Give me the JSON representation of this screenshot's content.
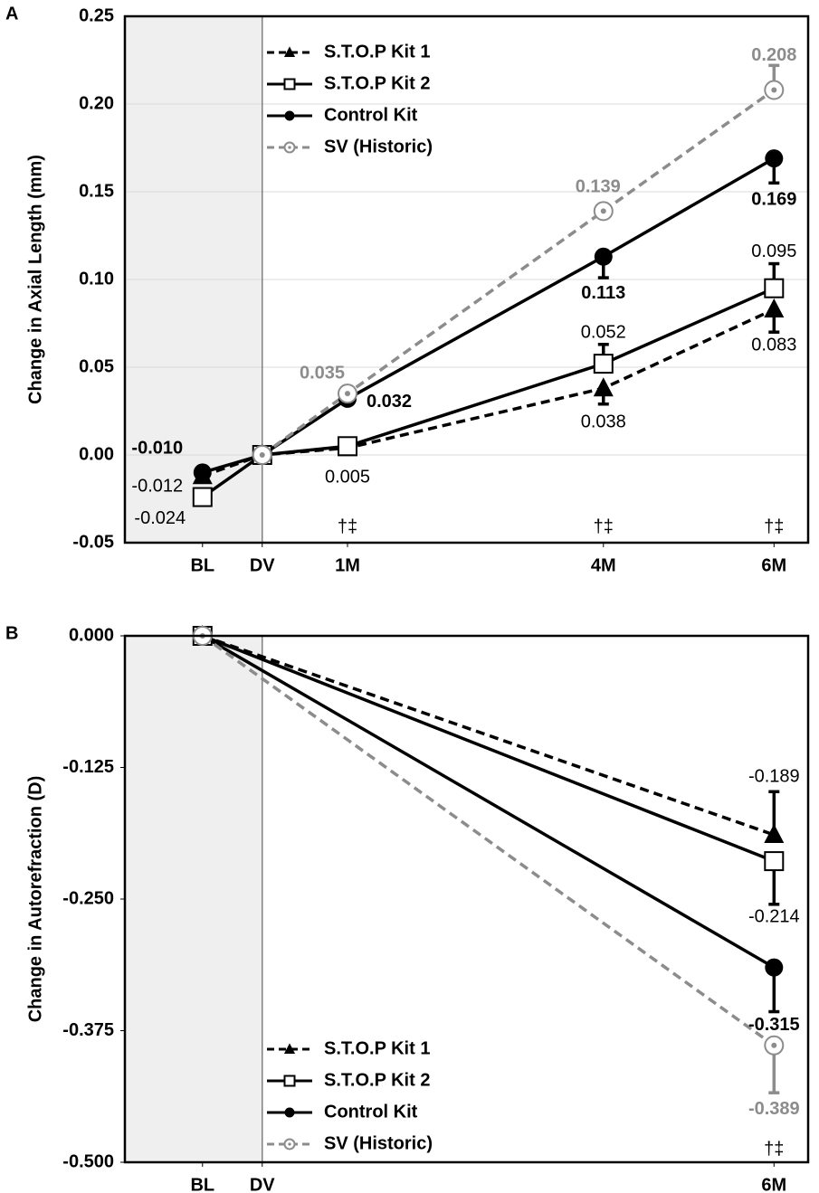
{
  "chart_data": [
    {
      "type": "line",
      "panel_label": "A",
      "ylabel": "Change in Axial Length (mm)",
      "x": [
        -0.7,
        0,
        1,
        4,
        6
      ],
      "xlim": [
        -1.61,
        6.4
      ],
      "xticks": [
        {
          "value": -0.7,
          "label": "BL"
        },
        {
          "value": 0,
          "label": "DV"
        },
        {
          "value": 1,
          "label": "1M"
        },
        {
          "value": 4,
          "label": "4M"
        },
        {
          "value": 6,
          "label": "6M"
        }
      ],
      "ylim": [
        -0.05,
        0.25
      ],
      "yticks": [
        -0.05,
        {
          "value": 0,
          "label": "0.00"
        },
        0.05,
        {
          "value": 0.1,
          "label": "0.10"
        },
        0.15,
        {
          "value": 0.2,
          "label": "0.20"
        },
        0.25
      ],
      "grid": true,
      "legend": "upper left",
      "annotations": [
        "†‡",
        "†‡",
        "†‡"
      ],
      "series": [
        {
          "name": "S.T.O.P Kit 1",
          "color": "#000000",
          "linestyle": "dashed",
          "marker": "triangle",
          "error_side": "below",
          "label_weight": "normal",
          "values": [
            -0.012,
            0,
            0.004,
            0.038,
            0.083
          ],
          "errors": [
            null,
            null,
            0.003,
            0.009,
            0.013
          ],
          "value_labels": [
            "-0.012",
            null,
            null,
            "0.038",
            "0.083"
          ]
        },
        {
          "name": "S.T.O.P Kit 2",
          "color": "#000000",
          "linestyle": "solid",
          "marker": "square",
          "error_side": "above",
          "label_weight": "normal",
          "values": [
            -0.024,
            0,
            0.005,
            0.052,
            0.095
          ],
          "errors": [
            null,
            null,
            0.003,
            0.011,
            0.014
          ],
          "value_labels": [
            "-0.024",
            null,
            "0.005",
            "0.052",
            "0.095"
          ]
        },
        {
          "name": "Control Kit",
          "color": "#000000",
          "linestyle": "solid",
          "marker": "circle",
          "error_side": "below",
          "label_weight": "bold",
          "values": [
            -0.01,
            0,
            0.032,
            0.113,
            0.169
          ],
          "errors": [
            null,
            null,
            0.003,
            0.012,
            0.014
          ],
          "value_labels": [
            "-0.010",
            null,
            "0.032",
            "0.113",
            "0.169"
          ]
        },
        {
          "name": "SV (Historic)",
          "color": "#8c8c8c",
          "linestyle": "dashed",
          "marker": "ring",
          "error_side": "above",
          "label_weight": "bold",
          "values": [
            null,
            0,
            0.035,
            0.139,
            0.208
          ],
          "errors": [
            null,
            null,
            null,
            null,
            0.014
          ],
          "value_labels": [
            null,
            null,
            "0.035",
            "0.139",
            "0.208"
          ]
        }
      ]
    },
    {
      "type": "line",
      "panel_label": "B",
      "ylabel": "Change in Autorefraction (D)",
      "x": [
        -0.7,
        6
      ],
      "xlim": [
        -1.61,
        6.4
      ],
      "xticks": [
        {
          "value": -0.7,
          "label": "BL"
        },
        {
          "value": 0,
          "label": "DV"
        },
        {
          "value": 6,
          "label": "6M"
        }
      ],
      "ylim": [
        -0.5,
        0
      ],
      "yticks": [
        {
          "value": -0.5,
          "label": "-0.500"
        },
        {
          "value": -0.375,
          "label": "-0.375"
        },
        {
          "value": -0.25,
          "label": "-0.250"
        },
        {
          "value": -0.125,
          "label": "-0.125"
        },
        {
          "value": 0,
          "label": "0.000"
        }
      ],
      "grid": false,
      "legend": "lower left",
      "annotations": [
        "†‡"
      ],
      "series": [
        {
          "name": "S.T.O.P Kit 1",
          "color": "#000000",
          "linestyle": "dashed",
          "marker": "triangle",
          "error_side": "above",
          "label_weight": "normal",
          "values": [
            0,
            -0.189
          ],
          "errors": [
            null,
            0.041
          ],
          "value_labels": [
            null,
            "-0.189"
          ]
        },
        {
          "name": "S.T.O.P Kit 2",
          "color": "#000000",
          "linestyle": "solid",
          "marker": "square",
          "error_side": "below",
          "label_weight": "normal",
          "values": [
            0,
            -0.214
          ],
          "errors": [
            null,
            0.041
          ],
          "value_labels": [
            null,
            "-0.214"
          ]
        },
        {
          "name": "Control Kit",
          "color": "#000000",
          "linestyle": "solid",
          "marker": "circle",
          "error_side": "below",
          "label_weight": "bold",
          "values": [
            0,
            -0.315
          ],
          "errors": [
            null,
            0.042
          ],
          "value_labels": [
            null,
            "-0.315"
          ]
        },
        {
          "name": "SV (Historic)",
          "color": "#8c8c8c",
          "linestyle": "dashed",
          "marker": "ring",
          "error_side": "below",
          "label_weight": "bold",
          "values": [
            0,
            -0.389
          ],
          "errors": [
            null,
            0.045
          ],
          "value_labels": [
            null,
            "-0.389"
          ]
        }
      ]
    }
  ]
}
